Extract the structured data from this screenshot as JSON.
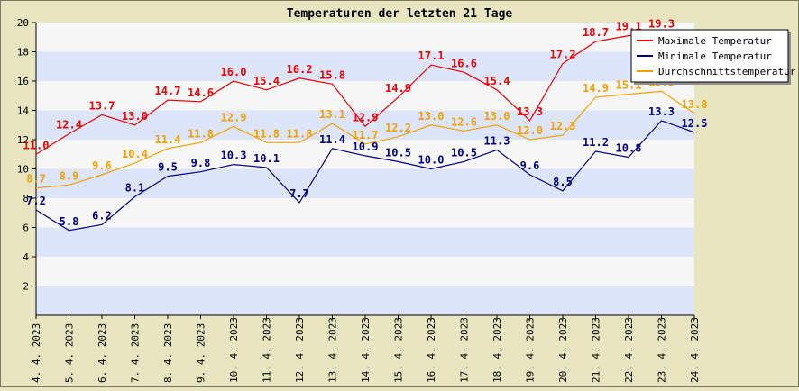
{
  "chart_data": {
    "type": "line",
    "title": "Temperaturen der letzten 21 Tage",
    "xlabel": "",
    "ylabel": "",
    "ylim": [
      0,
      20
    ],
    "yticks": [
      2,
      4,
      6,
      8,
      10,
      12,
      14,
      16,
      18,
      20
    ],
    "grid": true,
    "legend_position": "top-right",
    "categories": [
      "4. 4. 2023",
      "5. 4. 2023",
      "6. 4. 2023",
      "7. 4. 2023",
      "8. 4. 2023",
      "9. 4. 2023",
      "10. 4. 2023",
      "11. 4. 2023",
      "12. 4. 2023",
      "13. 4. 2023",
      "14. 4. 2023",
      "15. 4. 2023",
      "16. 4. 2023",
      "17. 4. 2023",
      "18. 4. 2023",
      "19. 4. 2023",
      "20. 4. 2023",
      "21. 4. 2023",
      "22. 4. 2023",
      "23. 4. 2023",
      "24. 4. 2023"
    ],
    "series": [
      {
        "name": "Maximale Temperatur",
        "color": "#ee0000",
        "values": [
          11.0,
          12.4,
          13.7,
          13.0,
          14.7,
          14.6,
          16.0,
          15.4,
          16.2,
          15.8,
          12.9,
          14.9,
          17.1,
          16.6,
          15.4,
          13.3,
          17.2,
          18.7,
          19.1,
          19.3,
          18.5
        ],
        "labels": [
          "11.0",
          "12.4",
          "13.7",
          "13.0",
          "14.7",
          "14.6",
          "16.0",
          "15.4",
          "16.2",
          "15.8",
          "12.9",
          "14.9",
          "17.1",
          "16.6",
          "15.4",
          "13.3",
          "17.2",
          "18.7",
          "19.1",
          "19.3",
          "18.5"
        ]
      },
      {
        "name": "Minimale Temperatur",
        "color": "#000080",
        "values": [
          7.2,
          5.8,
          6.2,
          8.1,
          9.5,
          9.8,
          10.3,
          10.1,
          7.7,
          11.4,
          10.9,
          10.5,
          10.0,
          10.5,
          11.3,
          9.6,
          8.5,
          11.2,
          10.8,
          13.3,
          12.5
        ],
        "labels": [
          "7.2",
          "5.8",
          "6.2",
          "8.1",
          "9.5",
          "9.8",
          "10.3",
          "10.1",
          "7.7",
          "11.4",
          "10.9",
          "10.5",
          "10.0",
          "10.5",
          "11.3",
          "9.6",
          "8.5",
          "11.2",
          "10.8",
          "13.3",
          "12.5"
        ]
      },
      {
        "name": "Durchschnittstemperatur",
        "color": "#f5a000",
        "values": [
          8.7,
          8.9,
          9.6,
          10.4,
          11.4,
          11.8,
          12.9,
          11.8,
          11.8,
          13.1,
          11.7,
          12.2,
          13.0,
          12.6,
          13.0,
          12.0,
          12.3,
          14.9,
          15.1,
          15.3,
          13.8
        ],
        "labels": [
          "8.7",
          "8.9",
          "9.6",
          "10.4",
          "11.4",
          "11.8",
          "12.9",
          "11.8",
          "11.8",
          "13.1",
          "11.7",
          "12.2",
          "13.0",
          "12.6",
          "13.0",
          "12.0",
          "12.3",
          "14.9",
          "15.1",
          "15.3",
          "13.8"
        ]
      }
    ],
    "colors": {
      "background": "#e8e6c0",
      "band_dark": "#dde5fb",
      "band_light": "#f7f7f7",
      "axis": "#000000"
    }
  }
}
